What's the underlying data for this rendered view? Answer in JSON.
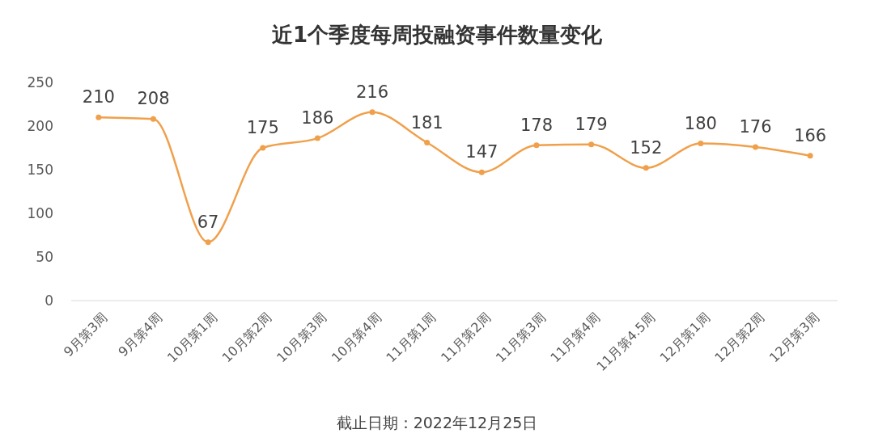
{
  "chart_data": {
    "type": "line",
    "title": "近1个季度每周投融资事件数量变化",
    "categories": [
      "9月第3周",
      "9月第4周",
      "10月第1周",
      "10月第2周",
      "10月第3周",
      "10月第4周",
      "11月第1周",
      "11月第2周",
      "11月第3周",
      "11月第4周",
      "11月第4.5周",
      "12月第1周",
      "12月第2周",
      "12月第3周"
    ],
    "series": [
      {
        "color": "#f0a04b",
        "values": [
          210,
          208,
          67,
          175,
          186,
          216,
          181,
          147,
          178,
          179,
          152,
          180,
          176,
          166
        ]
      }
    ],
    "ylim": [
      0,
      250
    ],
    "yticks": [
      0,
      50,
      100,
      150,
      200,
      250
    ],
    "marker": "circle",
    "line_style": "solid",
    "data_labels": true,
    "annotations": [
      "截止日期：2022年12月25日"
    ]
  }
}
